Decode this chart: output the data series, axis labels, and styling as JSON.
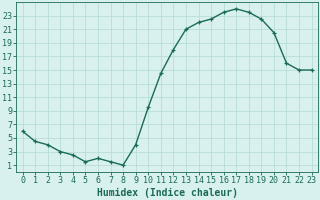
{
  "x": [
    0,
    1,
    2,
    3,
    4,
    5,
    6,
    7,
    8,
    9,
    10,
    11,
    12,
    13,
    14,
    15,
    16,
    17,
    18,
    19,
    20,
    21,
    22,
    23
  ],
  "y": [
    6,
    4.5,
    4,
    3,
    2.5,
    1.5,
    2,
    1.5,
    1,
    4,
    9.5,
    14.5,
    18,
    21,
    22,
    22.5,
    23.5,
    24,
    23.5,
    22.5,
    20.5,
    16,
    15,
    15
  ],
  "line_color": "#1a6b55",
  "marker": "+",
  "bg_color": "#d8f0ee",
  "grid_color": "#b8ddd8",
  "xlabel": "Humidex (Indice chaleur)",
  "xlim": [
    -0.5,
    23.5
  ],
  "ylim": [
    0,
    25
  ],
  "xtick_labels": [
    "0",
    "1",
    "2",
    "3",
    "4",
    "5",
    "6",
    "7",
    "8",
    "9",
    "10",
    "11",
    "12",
    "13",
    "14",
    "15",
    "16",
    "17",
    "18",
    "19",
    "20",
    "21",
    "22",
    "23"
  ],
  "ytick_values": [
    1,
    3,
    5,
    7,
    9,
    11,
    13,
    15,
    17,
    19,
    21,
    23
  ],
  "tick_color": "#1a6b55",
  "label_color": "#1a6b55",
  "font_size_tick": 6,
  "font_size_xlabel": 7
}
